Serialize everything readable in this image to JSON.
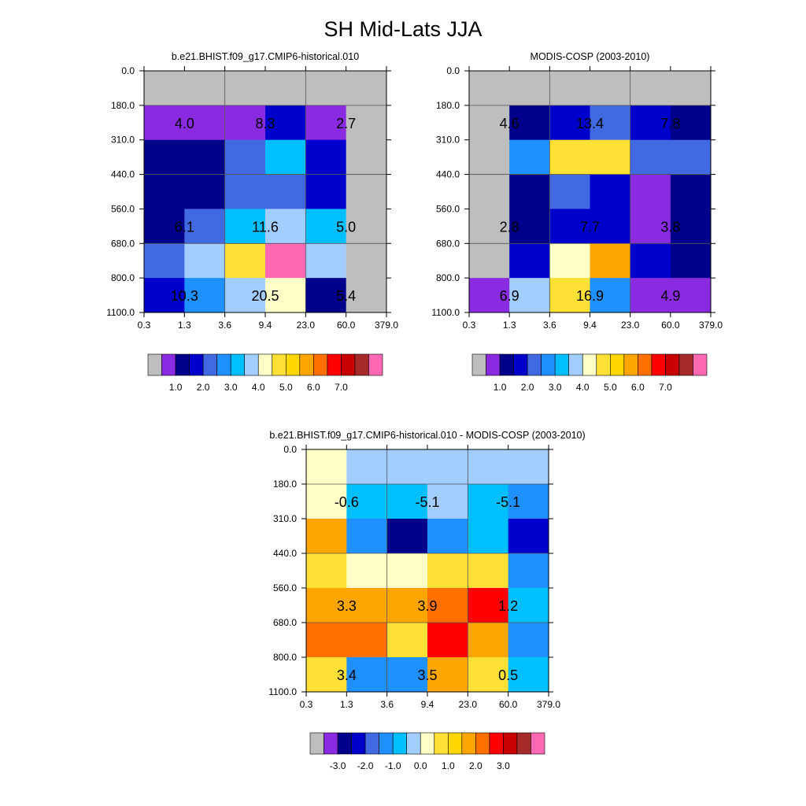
{
  "title": "SH Mid-Lats JJA",
  "colors": {
    "gray": "#bebebe",
    "purple": "#8a2be2",
    "navy": "#00008b",
    "blue": "#0000cd",
    "royal": "#4169e1",
    "dodger": "#1e90ff",
    "sky": "#00bfff",
    "lightblue": "#a2cdff",
    "cream": "#ffffc8",
    "yellow": "#ffe135",
    "gold": "#ffd700",
    "orange": "#ffa500",
    "darkorange": "#ff7000",
    "red": "#ff0000",
    "darkred": "#c80000",
    "brown": "#a52a2a",
    "pink": "#ff69b4"
  },
  "chart_data": [
    {
      "type": "heatmap",
      "title": "b.e21.BHIST.f09_g17.CMIP6-historical.010",
      "x_ticks": [
        "0.3",
        "1.3",
        "3.6",
        "9.4",
        "23.0",
        "60.0",
        "379.0"
      ],
      "y_ticks": [
        "0.0",
        "180.0",
        "310.0",
        "440.0",
        "560.0",
        "680.0",
        "800.0",
        "1100.0"
      ],
      "cells": [
        [
          "gray",
          "gray",
          "gray",
          "gray",
          "gray",
          "gray"
        ],
        [
          "purple",
          "purple",
          "purple",
          "blue",
          "purple",
          "gray"
        ],
        [
          "navy",
          "navy",
          "royal",
          "sky",
          "blue",
          "gray"
        ],
        [
          "navy",
          "navy",
          "royal",
          "royal",
          "blue",
          "gray"
        ],
        [
          "navy",
          "royal",
          "sky",
          "lightblue",
          "sky",
          "gray"
        ],
        [
          "royal",
          "lightblue",
          "yellow",
          "pink",
          "lightblue",
          "gray"
        ],
        [
          "blue",
          "dodger",
          "lightblue",
          "cream",
          "navy",
          "gray"
        ]
      ],
      "labels": [
        {
          "col": 1,
          "row": 1,
          "text": "4.0"
        },
        {
          "col": 3,
          "row": 1,
          "text": "8.3"
        },
        {
          "col": 5,
          "row": 1,
          "text": "2.7"
        },
        {
          "col": 1,
          "row": 4,
          "text": "6.1"
        },
        {
          "col": 3,
          "row": 4,
          "text": "11.6"
        },
        {
          "col": 5,
          "row": 4,
          "text": "5.0"
        },
        {
          "col": 1,
          "row": 6,
          "text": "10.3"
        },
        {
          "col": 3,
          "row": 6,
          "text": "20.5"
        },
        {
          "col": 5,
          "row": 6,
          "text": "5.4"
        }
      ],
      "colorbar": {
        "colors": [
          "gray",
          "purple",
          "navy",
          "blue",
          "royal",
          "dodger",
          "sky",
          "lightblue",
          "cream",
          "yellow",
          "gold",
          "orange",
          "darkorange",
          "red",
          "darkred",
          "brown",
          "pink"
        ],
        "labels": [
          {
            "boundary": 2,
            "text": "1.0"
          },
          {
            "boundary": 4,
            "text": "2.0"
          },
          {
            "boundary": 6,
            "text": "3.0"
          },
          {
            "boundary": 8,
            "text": "4.0"
          },
          {
            "boundary": 10,
            "text": "5.0"
          },
          {
            "boundary": 12,
            "text": "6.0"
          },
          {
            "boundary": 14,
            "text": "7.0"
          }
        ]
      }
    },
    {
      "type": "heatmap",
      "title": "MODIS-COSP (2003-2010)",
      "x_ticks": [
        "0.3",
        "1.3",
        "3.6",
        "9.4",
        "23.0",
        "60.0",
        "379.0"
      ],
      "y_ticks": [
        "0.0",
        "180.0",
        "310.0",
        "440.0",
        "560.0",
        "680.0",
        "800.0",
        "1100.0"
      ],
      "cells": [
        [
          "gray",
          "gray",
          "gray",
          "gray",
          "gray",
          "gray"
        ],
        [
          "gray",
          "navy",
          "blue",
          "royal",
          "blue",
          "navy"
        ],
        [
          "gray",
          "dodger",
          "yellow",
          "yellow",
          "royal",
          "royal"
        ],
        [
          "gray",
          "navy",
          "royal",
          "blue",
          "purple",
          "navy"
        ],
        [
          "gray",
          "navy",
          "blue",
          "blue",
          "purple",
          "navy"
        ],
        [
          "gray",
          "blue",
          "cream",
          "orange",
          "blue",
          "navy"
        ],
        [
          "purple",
          "lightblue",
          "yellow",
          "dodger",
          "purple",
          "purple"
        ]
      ],
      "labels": [
        {
          "col": 1,
          "row": 1,
          "text": "4.6"
        },
        {
          "col": 3,
          "row": 1,
          "text": "13.4"
        },
        {
          "col": 5,
          "row": 1,
          "text": "7.8"
        },
        {
          "col": 1,
          "row": 4,
          "text": "2.8"
        },
        {
          "col": 3,
          "row": 4,
          "text": "7.7"
        },
        {
          "col": 5,
          "row": 4,
          "text": "3.8"
        },
        {
          "col": 1,
          "row": 6,
          "text": "6.9"
        },
        {
          "col": 3,
          "row": 6,
          "text": "16.9"
        },
        {
          "col": 5,
          "row": 6,
          "text": "4.9"
        }
      ],
      "colorbar": {
        "colors": [
          "gray",
          "purple",
          "navy",
          "blue",
          "royal",
          "dodger",
          "sky",
          "lightblue",
          "cream",
          "yellow",
          "gold",
          "orange",
          "darkorange",
          "red",
          "darkred",
          "brown",
          "pink"
        ],
        "labels": [
          {
            "boundary": 2,
            "text": "1.0"
          },
          {
            "boundary": 4,
            "text": "2.0"
          },
          {
            "boundary": 6,
            "text": "3.0"
          },
          {
            "boundary": 8,
            "text": "4.0"
          },
          {
            "boundary": 10,
            "text": "5.0"
          },
          {
            "boundary": 12,
            "text": "6.0"
          },
          {
            "boundary": 14,
            "text": "7.0"
          }
        ]
      }
    },
    {
      "type": "heatmap",
      "title": "b.e21.BHIST.f09_g17.CMIP6-historical.010 - MODIS-COSP (2003-2010)",
      "x_ticks": [
        "0.3",
        "1.3",
        "3.6",
        "9.4",
        "23.0",
        "60.0",
        "379.0"
      ],
      "y_ticks": [
        "0.0",
        "180.0",
        "310.0",
        "440.0",
        "560.0",
        "680.0",
        "800.0",
        "1100.0"
      ],
      "cells": [
        [
          "cream",
          "lightblue",
          "lightblue",
          "lightblue",
          "lightblue",
          "lightblue"
        ],
        [
          "cream",
          "sky",
          "sky",
          "lightblue",
          "sky",
          "dodger"
        ],
        [
          "orange",
          "dodger",
          "navy",
          "dodger",
          "sky",
          "blue"
        ],
        [
          "yellow",
          "cream",
          "cream",
          "yellow",
          "yellow",
          "dodger"
        ],
        [
          "orange",
          "orange",
          "orange",
          "darkorange",
          "red",
          "sky"
        ],
        [
          "darkorange",
          "darkorange",
          "yellow",
          "red",
          "orange",
          "dodger"
        ],
        [
          "yellow",
          "dodger",
          "dodger",
          "orange",
          "yellow",
          "sky"
        ]
      ],
      "labels": [
        {
          "col": 1,
          "row": 1,
          "text": "-0.6"
        },
        {
          "col": 3,
          "row": 1,
          "text": "-5.1"
        },
        {
          "col": 5,
          "row": 1,
          "text": "-5.1"
        },
        {
          "col": 1,
          "row": 4,
          "text": "3.3"
        },
        {
          "col": 3,
          "row": 4,
          "text": "3.9"
        },
        {
          "col": 5,
          "row": 4,
          "text": "1.2"
        },
        {
          "col": 1,
          "row": 6,
          "text": "3.4"
        },
        {
          "col": 3,
          "row": 6,
          "text": "3.5"
        },
        {
          "col": 5,
          "row": 6,
          "text": "0.5"
        }
      ],
      "colorbar": {
        "colors": [
          "gray",
          "purple",
          "navy",
          "blue",
          "royal",
          "dodger",
          "sky",
          "lightblue",
          "cream",
          "yellow",
          "gold",
          "orange",
          "darkorange",
          "red",
          "darkred",
          "brown",
          "pink"
        ],
        "labels": [
          {
            "boundary": 2,
            "text": "-3.0"
          },
          {
            "boundary": 4,
            "text": "-2.0"
          },
          {
            "boundary": 6,
            "text": "-1.0"
          },
          {
            "boundary": 8,
            "text": "0.0"
          },
          {
            "boundary": 10,
            "text": "1.0"
          },
          {
            "boundary": 12,
            "text": "2.0"
          },
          {
            "boundary": 14,
            "text": "3.0"
          }
        ]
      }
    }
  ]
}
